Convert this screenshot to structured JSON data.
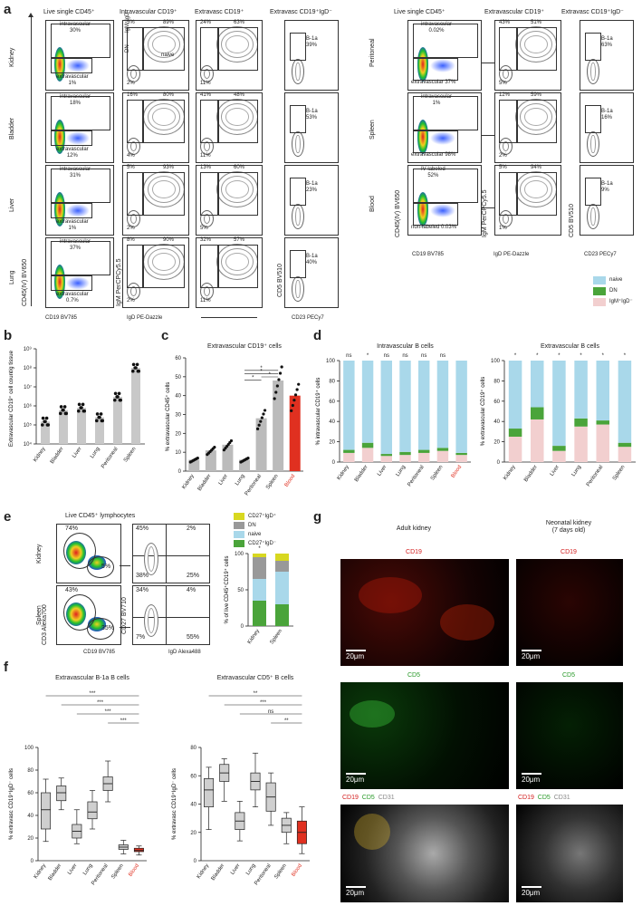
{
  "panels": {
    "a": "a",
    "b": "b",
    "c": "c",
    "d": "d",
    "e": "e",
    "f": "f",
    "g": "g"
  },
  "a": {
    "left_headers": [
      "Live single CD45⁺",
      "Intravascular CD19⁺",
      "Extravasc CD19⁺",
      "Extravasc CD19⁺IgD⁻"
    ],
    "right_headers": [
      "Live single CD45⁺",
      "Extravascular CD19⁺",
      "Extravasc CD19⁺IgD⁻"
    ],
    "left_rows": [
      {
        "tissue": "Kidney",
        "intra": "intravascular\n30%",
        "extra": "extravascular\n1%",
        "iv": [
          "5%",
          "89%",
          "2%"
        ],
        "ev": [
          "24%",
          "63%",
          "11%"
        ],
        "b1a": "B-1a\n39%"
      },
      {
        "tissue": "Bladder",
        "intra": "intravascular\n18%",
        "extra": "extravascular\n12%",
        "iv": [
          "16%",
          "80%",
          "4%"
        ],
        "ev": [
          "41%",
          "48%",
          "11%"
        ],
        "b1a": "B-1a\n53%"
      },
      {
        "tissue": "Liver",
        "intra": "intravascular\n31%",
        "extra": "extravascular\n1%",
        "iv": [
          "5%",
          "93%",
          "2%"
        ],
        "ev": [
          "13%",
          "60%",
          "5%"
        ],
        "b1a": "B-1a\n23%"
      },
      {
        "tissue": "Lung",
        "intra": "intravascular\n37%",
        "extra": "extravascular\n0.7%",
        "iv": [
          "8%",
          "90%",
          "2%"
        ],
        "ev": [
          "32%",
          "57%",
          "11%"
        ],
        "b1a": "B-1a\n40%"
      }
    ],
    "right_rows": [
      {
        "tissue": "Peritoneal",
        "intra": "intravascular\n0.02%",
        "extra": "extravascular 37%",
        "ev": [
          "43%",
          "51%",
          "5%"
        ],
        "b1a": "B-1a\n63%"
      },
      {
        "tissue": "Spleen",
        "intra": "intravascular\n1%",
        "extra": "extravascular 98%",
        "ev": [
          "12%",
          "59%",
          "2%"
        ],
        "b1a": "B-1a\n16%"
      },
      {
        "tissue": "Blood",
        "intra": "IV labeled\n52%",
        "extra": "non-labeled 0.03%",
        "ev": [
          "5%",
          "94%",
          "1%"
        ],
        "b1a": "B-1a\n9%"
      }
    ],
    "gate_labels": {
      "igm_igd": "IgM⁺IgD⁻",
      "dn": "DN",
      "naive": "naive"
    },
    "axes": {
      "cd45iv": "CD45(IV) BV650",
      "cd19": "CD19 BV785",
      "igm": "IgM PerCPCy5.5",
      "igd": "IgD PE-Dazzle",
      "cd5": "CD5 BV510",
      "cd23": "CD23 PECy7"
    },
    "legend": [
      {
        "label": "naive",
        "color": "#a9d8ea"
      },
      {
        "label": "DN",
        "color": "#4aa43a"
      },
      {
        "label": "IgM⁺IgD⁻",
        "color": "#f2cfcf"
      }
    ]
  },
  "chart_data": [
    {
      "type": "scatter",
      "panel": "b",
      "ylabel": "Extravascular CD19⁺ cell\ncount/g tissue",
      "yscale": "log",
      "ylim": [
        10000,
        1000000000
      ],
      "yticks": [
        "10⁴",
        "10⁵",
        "10⁶",
        "10⁷",
        "10⁸",
        "10⁹"
      ],
      "categories": [
        "Kidney",
        "Bladder",
        "Liver",
        "Lung",
        "Peritoneal",
        "Spleen"
      ],
      "values": [
        150000,
        600000,
        800000,
        250000,
        3000000,
        100000000
      ]
    },
    {
      "type": "bar",
      "panel": "c",
      "title": "Extravascular CD19⁺ cells",
      "ylabel": "% extravascular CD45⁺ cells",
      "ylim": [
        0,
        60
      ],
      "yticks": [
        "0",
        "10",
        "20",
        "30",
        "40",
        "50",
        "60"
      ],
      "categories": [
        "Kidney",
        "Bladder",
        "Liver",
        "Lung",
        "Peritoneal",
        "Spleen",
        "Blood"
      ],
      "values": [
        6,
        11,
        14,
        6,
        28,
        48,
        40
      ],
      "colors": [
        "#bbb",
        "#bbb",
        "#bbb",
        "#bbb",
        "#bbb",
        "#bbb",
        "#e03020"
      ],
      "annotations": [
        "*",
        "*",
        "*",
        "*"
      ]
    },
    {
      "type": "bar",
      "panel": "d-left",
      "title": "Intravascular B cells",
      "ylabel": "% intravascular CD19⁺ cells",
      "ylim": [
        0,
        100
      ],
      "yticks": [
        "0",
        "20",
        "40",
        "60",
        "80",
        "100"
      ],
      "categories": [
        "Kidney",
        "Bladder",
        "Liver",
        "Lung",
        "Peritoneal",
        "Spleen",
        "Blood"
      ],
      "sig": [
        "ns",
        "*",
        "ns",
        "ns",
        "ns",
        "ns",
        ""
      ],
      "series": [
        {
          "name": "IgM⁺IgD⁻",
          "values": [
            9,
            14,
            6,
            7,
            9,
            11,
            7
          ]
        },
        {
          "name": "DN",
          "values": [
            3,
            5,
            2,
            3,
            3,
            3,
            2
          ]
        },
        {
          "name": "naive",
          "values": [
            88,
            81,
            92,
            90,
            88,
            86,
            91
          ]
        }
      ]
    },
    {
      "type": "bar",
      "panel": "d-right",
      "title": "Extravascular B cells",
      "ylabel": "% extravascular CD19⁺ cells",
      "ylim": [
        0,
        100
      ],
      "yticks": [
        "0",
        "20",
        "40",
        "60",
        "80",
        "100"
      ],
      "categories": [
        "Kidney",
        "Bladder",
        "Liver",
        "Lung",
        "Peritoneal",
        "Spleen"
      ],
      "sig": [
        "*",
        "*",
        "*",
        "*",
        "*",
        "*"
      ],
      "series": [
        {
          "name": "IgM⁺IgD⁻",
          "values": [
            25,
            42,
            11,
            35,
            37,
            15
          ]
        },
        {
          "name": "DN",
          "values": [
            8,
            12,
            5,
            8,
            4,
            4
          ]
        },
        {
          "name": "naive",
          "values": [
            67,
            46,
            84,
            57,
            59,
            81
          ]
        }
      ]
    },
    {
      "type": "bar",
      "panel": "e",
      "ylabel": "% of live CD45⁺CD19⁺ cells",
      "ylim": [
        0,
        100
      ],
      "yticks": [
        "0",
        "50",
        "100"
      ],
      "categories": [
        "Kidney",
        "Spleen"
      ],
      "sig": [
        "*"
      ],
      "series": [
        {
          "name": "CD27⁺IgD⁻",
          "values": [
            35,
            30
          ]
        },
        {
          "name": "naive",
          "values": [
            30,
            45
          ]
        },
        {
          "name": "DN",
          "values": [
            30,
            15
          ]
        },
        {
          "name": "CD27⁺IgD⁺",
          "values": [
            5,
            10
          ]
        }
      ]
    },
    {
      "type": "box",
      "panel": "f-left",
      "title": "Extravascular B-1a B cells",
      "ylabel": "% extravasc CD19⁺IgD⁻ cells",
      "ylim": [
        0,
        100
      ],
      "yticks": [
        "0",
        "20",
        "40",
        "60",
        "80",
        "100"
      ],
      "categories": [
        "Kidney",
        "Bladder",
        "Liver",
        "Lung",
        "Peritoneal",
        "Spleen",
        "Blood"
      ],
      "sig": [
        "***",
        "***",
        "***",
        "***"
      ],
      "boxes": [
        [
          17,
          28,
          45,
          60,
          72
        ],
        [
          45,
          53,
          60,
          66,
          73
        ],
        [
          15,
          20,
          26,
          32,
          45
        ],
        [
          28,
          37,
          43,
          52,
          62
        ],
        [
          52,
          62,
          68,
          74,
          88
        ],
        [
          6,
          10,
          12,
          14,
          18
        ],
        [
          5,
          8,
          9,
          11,
          13
        ]
      ]
    },
    {
      "type": "box",
      "panel": "f-right",
      "title": "Extravascular CD5⁺ B cells",
      "ylabel": "% extravasc CD19⁺IgD⁻ cells",
      "ylim": [
        0,
        80
      ],
      "yticks": [
        "0",
        "20",
        "40",
        "60",
        "80"
      ],
      "categories": [
        "Kidney",
        "Bladder",
        "Liver",
        "Lung",
        "Peritoneal",
        "Spleen",
        "Blood"
      ],
      "sig": [
        "**",
        "***",
        "ns",
        "**"
      ],
      "boxes": [
        [
          22,
          38,
          50,
          58,
          66
        ],
        [
          42,
          56,
          62,
          68,
          72
        ],
        [
          14,
          22,
          28,
          34,
          42
        ],
        [
          38,
          50,
          56,
          62,
          76
        ],
        [
          25,
          35,
          45,
          55,
          62
        ],
        [
          12,
          20,
          25,
          30,
          34
        ],
        [
          5,
          12,
          20,
          28,
          38
        ]
      ]
    }
  ],
  "b": {
    "ylabel": "Extravascular CD19⁺ cell count/g tissue"
  },
  "e": {
    "header": "Live CD45⁺ lymphocytes",
    "rows": [
      {
        "tissue": "Kidney",
        "gate1": "74%",
        "gate2": "5%",
        "quad": [
          "45%",
          "2%",
          "38%",
          "25%"
        ]
      },
      {
        "tissue": "Spleen",
        "gate1": "43%",
        "gate2": "35%",
        "quad": [
          "34%",
          "4%",
          "7%",
          "55%"
        ]
      }
    ],
    "xaxis1": "CD19 BV785",
    "yaxis1": "CD3 Alexa700",
    "xaxis2": "IgD Alexa488",
    "yaxis2": "CD27 BV710",
    "legend": [
      {
        "label": "CD27⁺IgD⁺",
        "color": "#d8d820"
      },
      {
        "label": "DN",
        "color": "#999999"
      },
      {
        "label": "naive",
        "color": "#a9d8ea"
      },
      {
        "label": "CD27⁺IgD⁻",
        "color": "#4aa43a"
      }
    ]
  },
  "g": {
    "adult": "Adult kidney",
    "neonatal": "Neonatal kidney\n(7 days old)",
    "cd19": "CD19",
    "cd5": "CD5",
    "cd31": "CD31",
    "scale": "20μm"
  }
}
